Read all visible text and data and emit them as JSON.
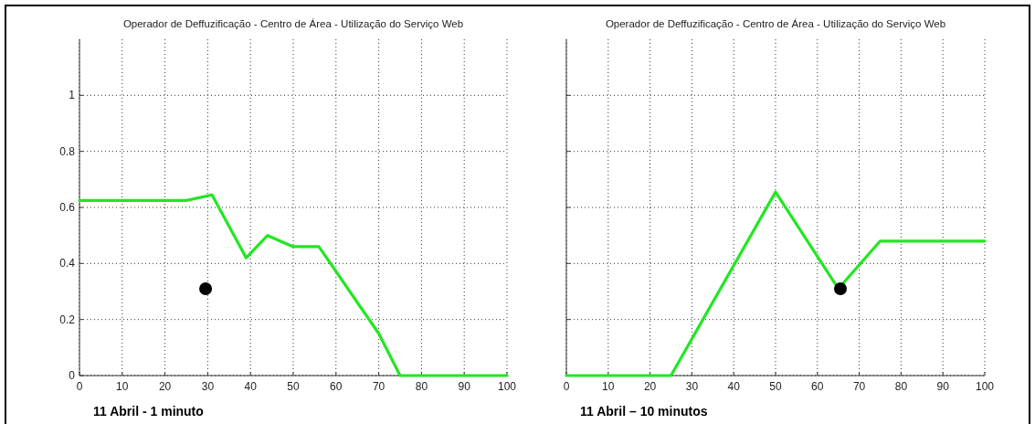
{
  "chart_data": [
    {
      "type": "line",
      "title": "Operador de Deffuzificação - Centro de Área - Utilização do Serviço Web",
      "xlim": [
        0,
        100
      ],
      "xticks": [
        0,
        10,
        20,
        30,
        40,
        50,
        60,
        70,
        80,
        90,
        100
      ],
      "ylim": [
        0,
        1.2
      ],
      "yticks": [
        0,
        0.2,
        0.4,
        0.6,
        0.8,
        1
      ],
      "grid": true,
      "annotations": [
        "11 Abril - 1 minuto"
      ],
      "series": [
        {
          "color": "#22e622",
          "marker": "none",
          "x": [
            0,
            25,
            31,
            39,
            44,
            50,
            56,
            70,
            75,
            100
          ],
          "values": [
            0.625,
            0.625,
            0.645,
            0.42,
            0.5,
            0.46,
            0.46,
            0.15,
            0,
            0
          ]
        },
        {
          "type": "scatter",
          "color": "#000000",
          "marker": "circle",
          "x": [
            29.5
          ],
          "values": [
            0.31
          ]
        }
      ]
    },
    {
      "type": "line",
      "title": "Operador de Deffuzificação - Centro de Área - Utilização do Serviço Web",
      "xlim": [
        0,
        100
      ],
      "xticks": [
        0,
        10,
        20,
        30,
        40,
        50,
        60,
        70,
        80,
        90,
        100
      ],
      "ylim": [
        0,
        1.2
      ],
      "yticks": [
        {
          "value": 0,
          "label": null
        },
        {
          "value": 0.2,
          "label": null
        },
        {
          "value": 0.4,
          "label": null
        },
        {
          "value": 0.6,
          "label": null
        },
        {
          "value": 0.8,
          "label": null
        },
        {
          "value": 1,
          "label": null
        }
      ],
      "tick_labels": "x",
      "grid": true,
      "annotations": [
        "11 Abril – 10  minutos"
      ],
      "series": [
        {
          "color": "#22e622",
          "marker": "none",
          "x": [
            0,
            25,
            50,
            65,
            75,
            100
          ],
          "values": [
            0,
            0,
            0.655,
            0.31,
            0.48,
            0.48
          ]
        },
        {
          "type": "scatter",
          "color": "#000000",
          "marker": "circle",
          "x": [
            65.5
          ],
          "values": [
            0.31
          ]
        }
      ]
    }
  ]
}
